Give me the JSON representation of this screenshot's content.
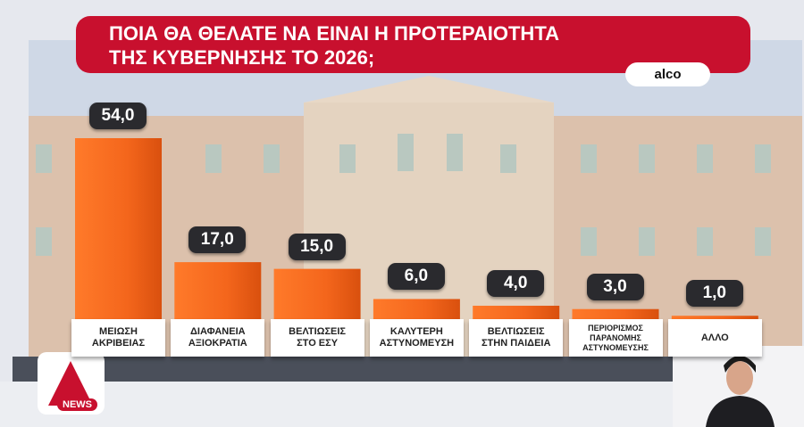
{
  "chart_data": {
    "type": "bar",
    "title": "ΠΟΙΑ ΘΑ ΘΕΛΑΤΕ ΝΑ ΕΙΝΑΙ Η ΠΡΟΤΕΡΑΙΟΤΗΤΑ\nΤΗΣ ΚΥΒΕΡΝΗΣΗΣ ΤΟ 2026;",
    "source": "alco",
    "categories": [
      "ΜΕΙΩΣΗ\nΑΚΡΙΒΕΙΑΣ",
      "ΔΙΑΦΑΝΕΙΑ\nΑΞΙΟΚΡΑΤΙΑ",
      "ΒΕΛΤΙΩΣΕΙΣ\nΣΤΟ ΕΣΥ",
      "ΚΑΛΥΤΕΡΗ\nΑΣΤΥΝΟΜΕΥΣΗ",
      "ΒΕΛΤΙΩΣΕΙΣ\nΣΤΗΝ ΠΑΙΔΕΙΑ",
      "ΠΕΡΙΟΡΙΣΜΟΣ\nΠΑΡΑΝΟΜΗΣ\nΑΣΤΥΝΟΜΕΥΣΗΣ",
      "ΑΛΛΟ"
    ],
    "values": [
      54,
      17,
      15,
      6,
      4,
      3,
      1
    ],
    "value_labels": [
      "54,0",
      "17,0",
      "15,0",
      "6,0",
      "4,0",
      "3,0",
      "1,0"
    ],
    "color": "#f4661c"
  },
  "logo": "NEWS"
}
